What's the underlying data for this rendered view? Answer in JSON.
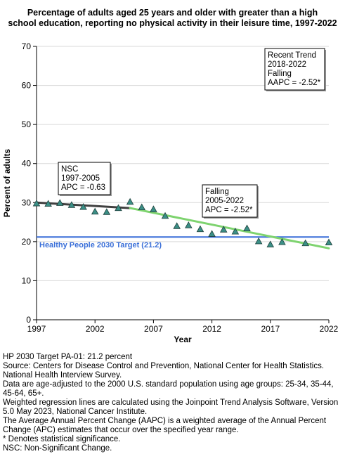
{
  "chart_data": {
    "type": "scatter",
    "title_lines": [
      "Percentage of adults aged 25 years and older with greater than a high",
      "school education, reporting no physical activity in their leisure time, 1997-2022"
    ],
    "xlabel": "Year",
    "ylabel": "Percent of adults",
    "xlim": [
      1997,
      2022
    ],
    "ylim": [
      0,
      70
    ],
    "x_ticks": [
      1997,
      2002,
      2007,
      2012,
      2017,
      2022
    ],
    "y_ticks": [
      0,
      10,
      20,
      30,
      40,
      50,
      60,
      70
    ],
    "points": [
      {
        "x": 1997,
        "y": 29.8
      },
      {
        "x": 1998,
        "y": 29.7
      },
      {
        "x": 1999,
        "y": 29.9
      },
      {
        "x": 2000,
        "y": 29.4
      },
      {
        "x": 2001,
        "y": 28.9
      },
      {
        "x": 2002,
        "y": 27.7
      },
      {
        "x": 2003,
        "y": 27.6
      },
      {
        "x": 2004,
        "y": 28.6
      },
      {
        "x": 2005,
        "y": 30.2
      },
      {
        "x": 2006,
        "y": 28.8
      },
      {
        "x": 2007,
        "y": 28.3
      },
      {
        "x": 2008,
        "y": 26.6
      },
      {
        "x": 2009,
        "y": 24.0
      },
      {
        "x": 2010,
        "y": 24.2
      },
      {
        "x": 2011,
        "y": 23.2
      },
      {
        "x": 2012,
        "y": 22.0
      },
      {
        "x": 2013,
        "y": 23.1
      },
      {
        "x": 2014,
        "y": 22.6
      },
      {
        "x": 2015,
        "y": 23.4
      },
      {
        "x": 2016,
        "y": 20.1
      },
      {
        "x": 2017,
        "y": 19.3
      },
      {
        "x": 2018,
        "y": 19.9
      },
      {
        "x": 2020,
        "y": 19.6
      },
      {
        "x": 2022,
        "y": 19.8
      }
    ],
    "trend_segments": [
      {
        "x": [
          1997,
          2005
        ],
        "y": [
          30.0,
          28.6
        ],
        "color": "#404040"
      },
      {
        "x": [
          2005,
          2022
        ],
        "y": [
          28.6,
          18.3
        ],
        "color": "#7ed36f"
      }
    ],
    "target": {
      "value": 21.2,
      "label": "Healthy People 2030 Target (21.2)",
      "color": "#3a6fd8"
    },
    "annotations": [
      {
        "lines": [
          "NSC",
          "1997-2005",
          "APC = -0.63"
        ]
      },
      {
        "lines": [
          "Falling",
          "2005-2022",
          "APC = -2.52*"
        ]
      },
      {
        "lines": [
          "Recent Trend",
          "2018-2022",
          "Falling",
          "AAPC = -2.52*"
        ]
      }
    ],
    "marker_color": "#3b8f86",
    "grid": "horizontal"
  },
  "footnotes": [
    "HP 2030 Target PA-01: 21.2 percent",
    "Source: Centers for Disease Control and Prevention, National Center for Health Statistics. National Health Interview Survey.",
    "Data are age-adjusted to the 2000 U.S. standard population using age groups: 25-34, 35-44, 45-64, 65+.",
    "Weighted regression lines are calculated using the Joinpoint Trend Analysis Software, Version 5.0 May 2023, National Cancer Institute.",
    "The Average Annual Percent Change (AAPC) is a weighted average of the Annual Percent Change (APC) estimates that occur over the specified year range.",
    "* Denotes statistical significance.",
    "NSC: Non-Significant Change."
  ]
}
